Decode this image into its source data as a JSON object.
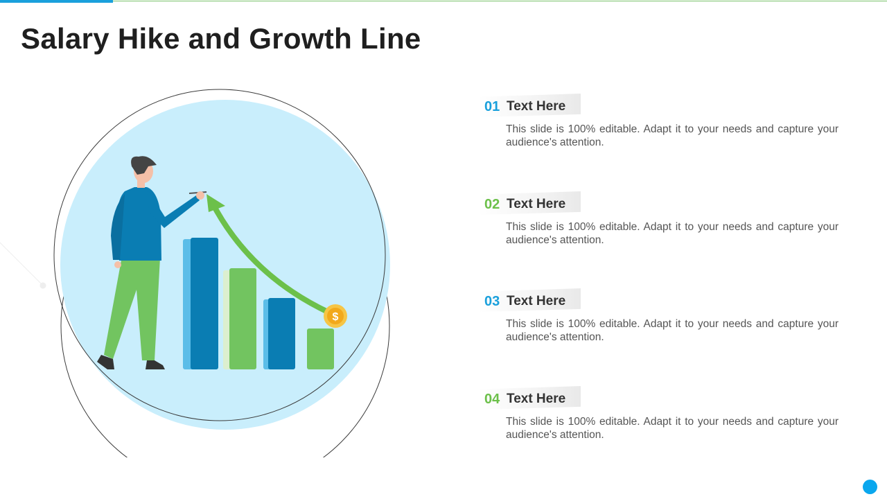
{
  "slide": {
    "title": "Salary Hike and Growth Line"
  },
  "items": [
    {
      "number": "01",
      "heading": "Text Here",
      "description": "This slide is 100% editable. Adapt it to your needs and capture your audience's attention.",
      "number_color": "#1aa0dc"
    },
    {
      "number": "02",
      "heading": "Text Here",
      "description": "This slide is 100% editable. Adapt it to your needs and capture your audience's attention.",
      "number_color": "#6cc04a"
    },
    {
      "number": "03",
      "heading": "Text Here",
      "description": "This slide is 100% editable. Adapt it to your needs and capture your audience's attention.",
      "number_color": "#1aa0dc"
    },
    {
      "number": "04",
      "heading": "Text Here",
      "description": "This slide is 100% editable. Adapt it to your needs and capture your audience's attention.",
      "number_color": "#6cc04a"
    }
  ],
  "colors": {
    "accent_blue": "#1aa0dc",
    "accent_green": "#6cc04a",
    "circle_fill": "#c9eefc",
    "bar_blue": "#0a7db3",
    "bar_green": "#72c460"
  },
  "illustration": {
    "icons": [
      "person-icon",
      "bar-chart-icon",
      "growth-arrow-icon",
      "dollar-coin-icon"
    ],
    "coin_symbol": "$"
  }
}
